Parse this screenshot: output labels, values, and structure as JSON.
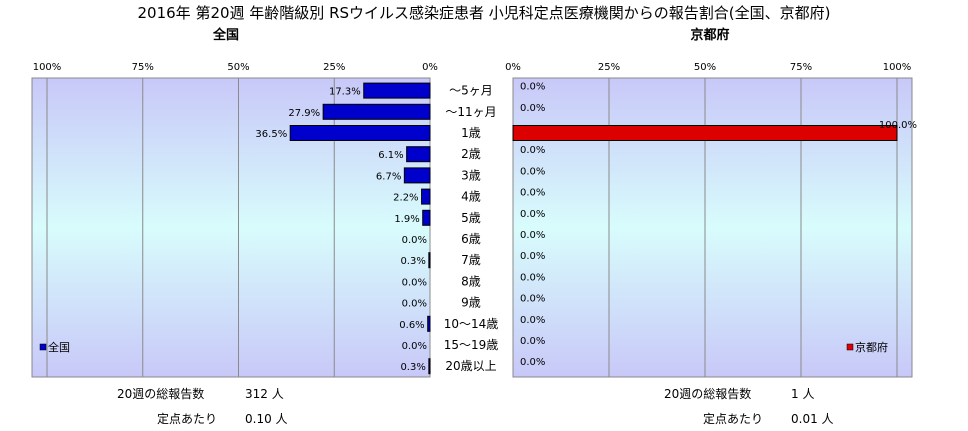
{
  "title": "2016年 第20週 年齢階級別 RSウイルス感染症患者 小児科定点医療機関からの報告割合(全国、京都府)",
  "colors": {
    "national": "#0000cc",
    "kyoto": "#dd0000",
    "plot_bg_top": "#c8c8f8",
    "plot_bg_mid": "#d8fcfc",
    "plot_bg_bottom": "#c8c8f8"
  },
  "chart_data": [
    {
      "type": "bar",
      "orientation": "horizontal",
      "direction": "right-to-left",
      "title": "全国",
      "legend": "全国",
      "legend_position": "bottom-left",
      "xlim": [
        0,
        100
      ],
      "x_ticks": [
        "100%",
        "75%",
        "50%",
        "25%",
        "0%"
      ],
      "grid": true,
      "categories": [
        "～5ヶ月",
        "～11ヶ月",
        "1歳",
        "2歳",
        "3歳",
        "4歳",
        "5歳",
        "6歳",
        "7歳",
        "8歳",
        "9歳",
        "10～14歳",
        "15～19歳",
        "20歳以上"
      ],
      "values": [
        17.3,
        27.9,
        36.5,
        6.1,
        6.7,
        2.2,
        1.9,
        0.0,
        0.3,
        0.0,
        0.0,
        0.6,
        0.0,
        0.3
      ],
      "labels": [
        "17.3%",
        "27.9%",
        "36.5%",
        "6.1%",
        "6.7%",
        "2.2%",
        "1.9%",
        "0.0%",
        "0.3%",
        "0.0%",
        "0.0%",
        "0.6%",
        "0.0%",
        "0.3%"
      ]
    },
    {
      "type": "bar",
      "orientation": "horizontal",
      "direction": "left-to-right",
      "title": "京都府",
      "legend": "京都府",
      "legend_position": "bottom-right",
      "xlim": [
        0,
        100
      ],
      "x_ticks": [
        "0%",
        "25%",
        "50%",
        "75%",
        "100%"
      ],
      "grid": true,
      "categories": [
        "～5ヶ月",
        "～11ヶ月",
        "1歳",
        "2歳",
        "3歳",
        "4歳",
        "5歳",
        "6歳",
        "7歳",
        "8歳",
        "9歳",
        "10～14歳",
        "15～19歳",
        "20歳以上"
      ],
      "values": [
        0.0,
        0.0,
        100.0,
        0.0,
        0.0,
        0.0,
        0.0,
        0.0,
        0.0,
        0.0,
        0.0,
        0.0,
        0.0,
        0.0
      ],
      "labels": [
        "0.0%",
        "0.0%",
        "100.0%",
        "0.0%",
        "0.0%",
        "0.0%",
        "0.0%",
        "0.0%",
        "0.0%",
        "0.0%",
        "0.0%",
        "0.0%",
        "0.0%",
        "0.0%"
      ]
    }
  ],
  "stats": {
    "national": {
      "total_label": "20週の総報告数",
      "total_value": "312 人",
      "per_label": "定点あたり",
      "per_value": "0.10 人"
    },
    "kyoto": {
      "total_label": "20週の総報告数",
      "total_value": "1 人",
      "per_label": "定点あたり",
      "per_value": "0.01 人"
    }
  }
}
